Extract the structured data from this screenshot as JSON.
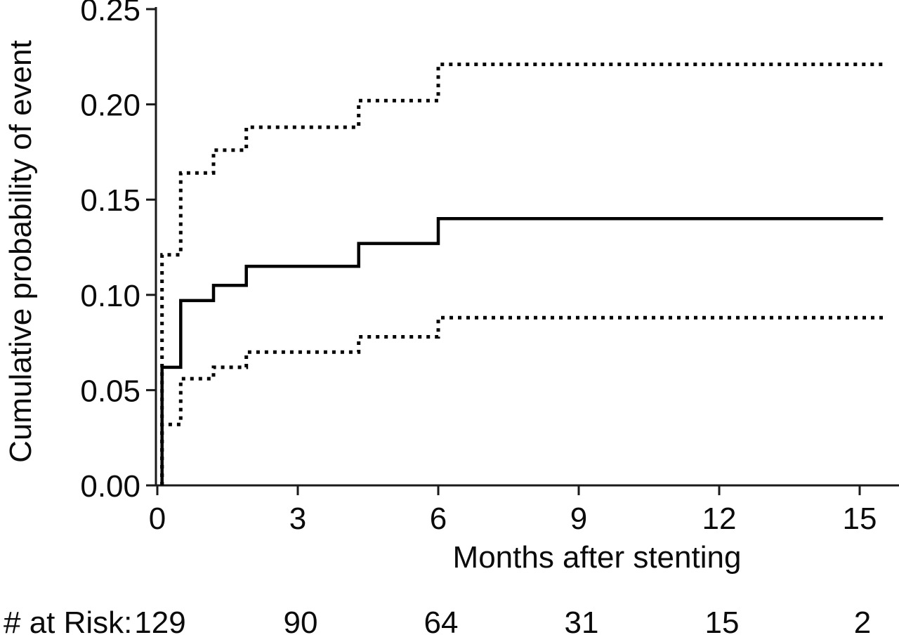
{
  "figure": {
    "background_color": "#ffffff",
    "text_color": "#0b0b0b",
    "curve_color": "#000000",
    "axis_color": "#1a1a1a"
  },
  "chart_data": {
    "type": "line",
    "chart_kind": "kaplan-meier-step-curve-with-confidence-bounds",
    "title": "",
    "xlabel": "Months after stenting",
    "ylabel": "Cumulative probability of event",
    "xlim": [
      0,
      15.5
    ],
    "ylim": [
      0,
      0.25
    ],
    "grid": false,
    "legend": "none",
    "xticks": [
      {
        "value": 0,
        "label": "0"
      },
      {
        "value": 3,
        "label": "3"
      },
      {
        "value": 6,
        "label": "6"
      },
      {
        "value": 9,
        "label": "9"
      },
      {
        "value": 12,
        "label": "12"
      },
      {
        "value": 15,
        "label": "15"
      }
    ],
    "yticks": [
      {
        "value": 0.0,
        "label": "0.00"
      },
      {
        "value": 0.05,
        "label": "0.05"
      },
      {
        "value": 0.1,
        "label": "0.10"
      },
      {
        "value": 0.15,
        "label": "0.15"
      },
      {
        "value": 0.2,
        "label": "0.20"
      },
      {
        "value": 0.25,
        "label": "0.25"
      }
    ],
    "event_times_months": [
      0.1,
      0.5,
      1.2,
      1.9,
      4.3,
      6.0
    ],
    "curve_end_month": 15.5,
    "series": [
      {
        "key": "estimate",
        "name": "Cumulative probability of event (estimate)",
        "style": "solid",
        "values": [
          0.062,
          0.097,
          0.105,
          0.115,
          0.127,
          0.14
        ]
      },
      {
        "key": "upper-ci",
        "name": "Upper confidence limit",
        "style": "dotted",
        "values": [
          0.121,
          0.164,
          0.176,
          0.188,
          0.202,
          0.221
        ]
      },
      {
        "key": "lower-ci",
        "name": "Lower confidence limit",
        "style": "dotted",
        "values": [
          0.032,
          0.056,
          0.062,
          0.07,
          0.078,
          0.088
        ]
      }
    ],
    "risk_table": {
      "label": "# at Risk:",
      "times": [
        0,
        3,
        6,
        9,
        12,
        15
      ],
      "counts": [
        "129",
        "90",
        "64",
        "31",
        "15",
        "2"
      ]
    }
  }
}
